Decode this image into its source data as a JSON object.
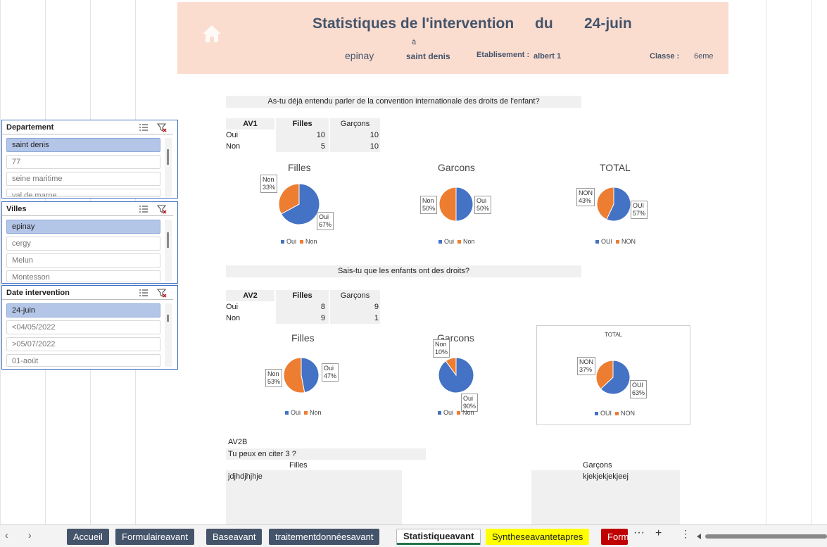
{
  "header": {
    "title": "Statistiques de l'intervention",
    "du": "du",
    "date": "24-juin",
    "a": "à",
    "from": "epinay",
    "to": "saint denis",
    "etab_label": "Etablisement :",
    "etab_value": "albert 1",
    "classe_label": "Classe :",
    "classe_value": "6eme"
  },
  "q1": {
    "question": "As-tu déjà entendu parler de la convention internationale des droits de l'enfant?",
    "table": {
      "code": "AV1",
      "col_f": "Filles",
      "col_g": "Garçons",
      "rows": [
        {
          "label": "Oui",
          "f": "10",
          "g": "10"
        },
        {
          "label": "Non",
          "f": "5",
          "g": "10"
        }
      ]
    },
    "charts": {
      "filles": {
        "title": "Filles",
        "oui_label": "Oui\n67%",
        "non_label": "Non\n33%",
        "legend_oui": "Oui",
        "legend_non": "Non"
      },
      "garcons": {
        "title": "Garcons",
        "oui_label": "Oui\n50%",
        "non_label": "Non\n50%",
        "legend_oui": "Oui",
        "legend_non": "Non"
      },
      "total": {
        "title": "TOTAL",
        "oui_label": "OUI\n57%",
        "non_label": "NON\n43%",
        "legend_oui": "OUI",
        "legend_non": "NON"
      }
    }
  },
  "q2": {
    "question": "Sais-tu que les enfants ont des droits?",
    "table": {
      "code": "AV2",
      "col_f": "Filles",
      "col_g": "Garçons",
      "rows": [
        {
          "label": "Oui",
          "f": "8",
          "g": "9"
        },
        {
          "label": "Non",
          "f": "9",
          "g": "1"
        }
      ]
    },
    "charts": {
      "filles": {
        "title": "Filles",
        "oui_label": "Oui\n47%",
        "non_label": "Non\n53%",
        "legend_oui": "Oui",
        "legend_non": "Non"
      },
      "garcons": {
        "title": "Garcons",
        "oui_label": "Oui\n90%",
        "non_label": "Non\n10%",
        "legend_oui": "Oui",
        "legend_non": "Non"
      },
      "total": {
        "title": "TOTAL",
        "oui_label": "OUI\n63%",
        "non_label": "NON\n37%",
        "legend_oui": "OUI",
        "legend_non": "NON"
      }
    }
  },
  "av2b": {
    "code": "AV2B",
    "question": "Tu peux en citer 3 ?",
    "label_f": "Filles",
    "label_g": "Garçons",
    "answer_f": "jdjhdjhjhje",
    "answer_g": "kjekjekjekjeej"
  },
  "slicers": {
    "departement": {
      "title": "Departement",
      "items": [
        "saint denis",
        "77",
        "seine maritime",
        "val de marne"
      ]
    },
    "villes": {
      "title": "Villes",
      "items": [
        "epinay",
        "cergy",
        "Melun",
        "Montesson"
      ]
    },
    "date": {
      "title": "Date intervention",
      "items": [
        "24-juin",
        "<04/05/2022",
        ">05/07/2022",
        "01-août"
      ]
    }
  },
  "tabs": [
    "Accueil",
    "Formulaireavant",
    "Baseavant",
    "traitementdonnéesavant",
    "Statistiqueavant",
    "Syntheseavantetapres",
    "Form"
  ],
  "colors": {
    "oui": "#4472c4",
    "non": "#ed7d31",
    "header_bg": "#fbddd0",
    "title": "#44546a"
  },
  "chart_data": [
    {
      "type": "pie",
      "title": "Filles",
      "categories": [
        "Oui",
        "Non"
      ],
      "values": [
        67,
        33
      ]
    },
    {
      "type": "pie",
      "title": "Garcons",
      "categories": [
        "Oui",
        "Non"
      ],
      "values": [
        50,
        50
      ]
    },
    {
      "type": "pie",
      "title": "TOTAL",
      "categories": [
        "OUI",
        "NON"
      ],
      "values": [
        57,
        43
      ]
    },
    {
      "type": "pie",
      "title": "Filles",
      "categories": [
        "Oui",
        "Non"
      ],
      "values": [
        47,
        53
      ]
    },
    {
      "type": "pie",
      "title": "Garcons",
      "categories": [
        "Oui",
        "Non"
      ],
      "values": [
        90,
        10
      ]
    },
    {
      "type": "pie",
      "title": "TOTAL",
      "categories": [
        "OUI",
        "NON"
      ],
      "values": [
        63,
        37
      ]
    }
  ]
}
